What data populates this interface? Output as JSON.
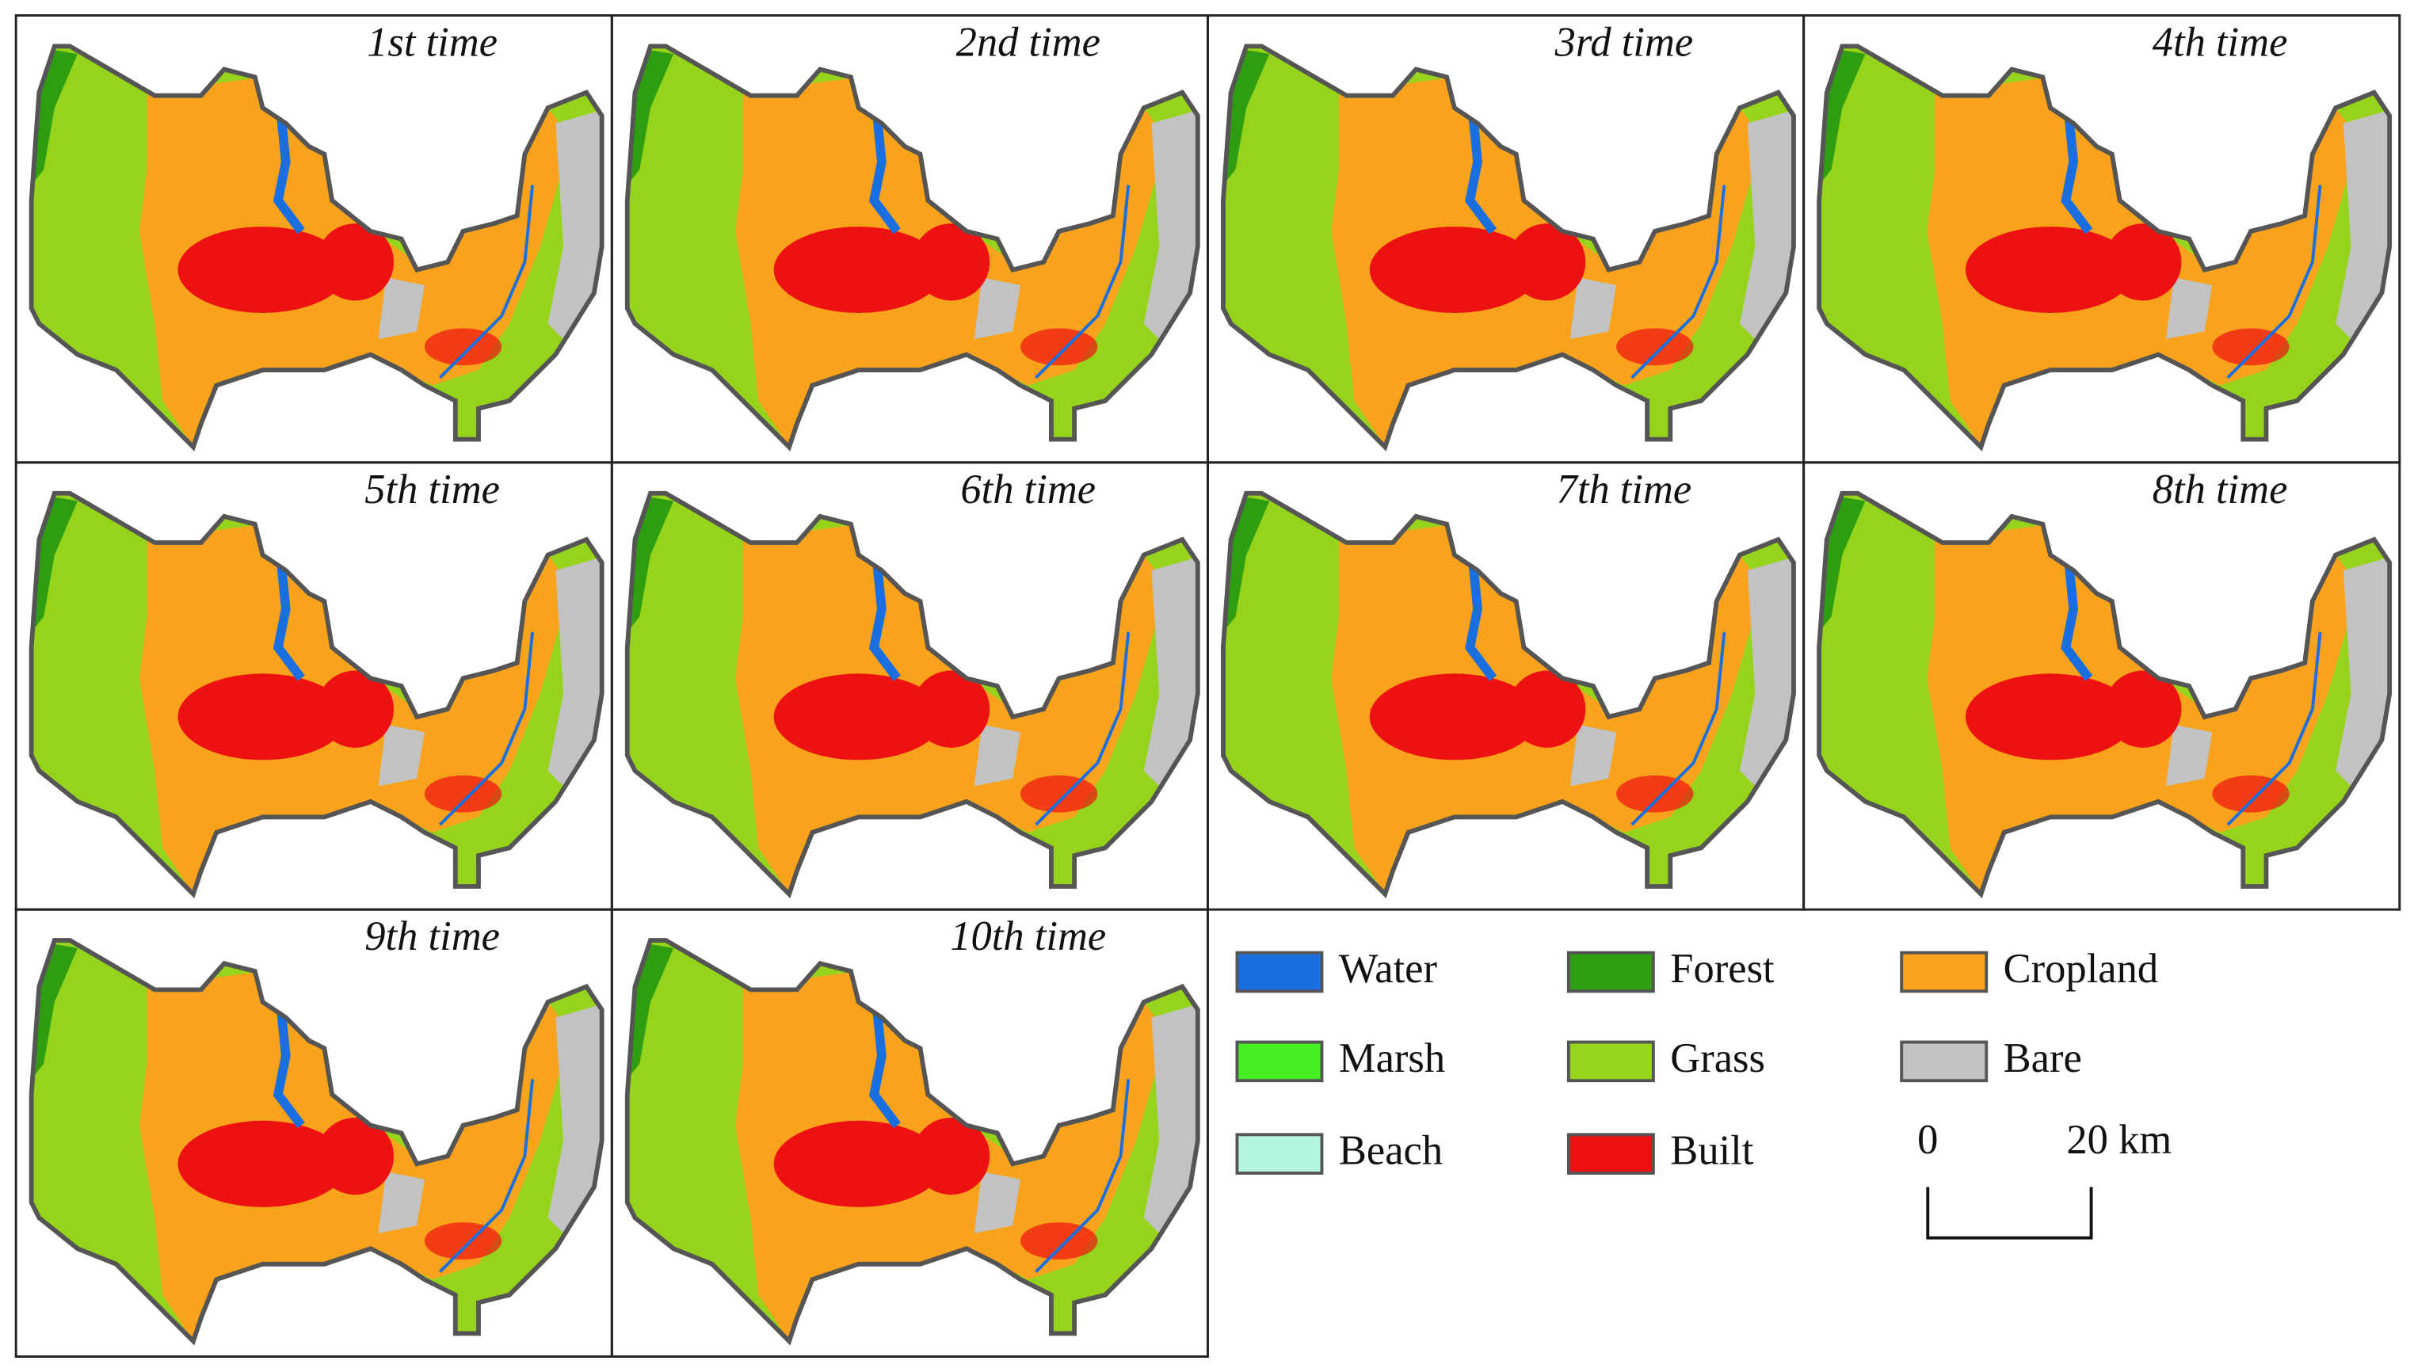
{
  "panels": [
    {
      "title": "1st time"
    },
    {
      "title": "2nd time"
    },
    {
      "title": "3rd time"
    },
    {
      "title": "4th time"
    },
    {
      "title": "5th time"
    },
    {
      "title": "6th time"
    },
    {
      "title": "7th time"
    },
    {
      "title": "8th time"
    },
    {
      "title": "9th time"
    },
    {
      "title": "10th time"
    }
  ],
  "legend": {
    "items": [
      {
        "label": "Water",
        "color": "#1a6fe0"
      },
      {
        "label": "Forest",
        "color": "#2e9e10"
      },
      {
        "label": "Cropland",
        "color": "#f9a21b"
      },
      {
        "label": "Marsh",
        "color": "#44ee22"
      },
      {
        "label": "Grass",
        "color": "#96d41c"
      },
      {
        "label": "Bare",
        "color": "#c2c2c2"
      },
      {
        "label": "Beach",
        "color": "#b4f5e2"
      },
      {
        "label": "Built",
        "color": "#ee1111"
      }
    ]
  },
  "scale_bar": {
    "labels": [
      "0",
      "20 km"
    ]
  }
}
